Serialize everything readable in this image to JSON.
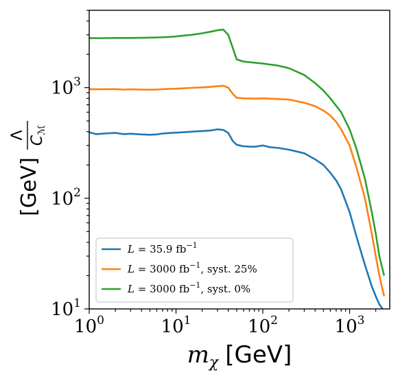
{
  "chart_data": {
    "type": "line",
    "xlabel_symbol": "m",
    "xlabel_sub": "χ",
    "xlabel_unit": "[GeV]",
    "ylabel_num": "Λ",
    "ylabel_den": "C",
    "ylabel_den_sub": "ℳ",
    "ylabel_unit": "[GeV]",
    "x_scale": "log",
    "y_scale": "log",
    "xlim": [
      1,
      2900
    ],
    "ylim": [
      10,
      5000
    ],
    "x_ticks": [
      {
        "value": 1,
        "base": "10",
        "exp": "0"
      },
      {
        "value": 10,
        "base": "10",
        "exp": "1"
      },
      {
        "value": 100,
        "base": "10",
        "exp": "2"
      },
      {
        "value": 1000,
        "base": "10",
        "exp": "3"
      }
    ],
    "y_ticks": [
      {
        "value": 10,
        "base": "10",
        "exp": "1"
      },
      {
        "value": 100,
        "base": "10",
        "exp": "2"
      },
      {
        "value": 1000,
        "base": "10",
        "exp": "3"
      }
    ],
    "grid": false,
    "legend_position": "lower-left",
    "series": [
      {
        "name": "L = 35.9 fb⁻¹, ",
        "label_parts": {
          "lhs": "L = 35.9 fb",
          "sup": "−1",
          "rest": ""
        },
        "color": "#1f77b4",
        "x": [
          1,
          1.2,
          1.5,
          2,
          2.5,
          3,
          4,
          5,
          6,
          7,
          8,
          10,
          12,
          15,
          20,
          25,
          30,
          35,
          40,
          45,
          50,
          60,
          70,
          80,
          100,
          120,
          150,
          200,
          300,
          400,
          500,
          600,
          700,
          800,
          1000,
          1200,
          1500,
          1800,
          2000,
          2200,
          2400
        ],
        "y": [
          395,
          380,
          385,
          390,
          380,
          383,
          378,
          375,
          378,
          385,
          388,
          392,
          395,
          400,
          405,
          410,
          420,
          415,
          390,
          330,
          305,
          295,
          293,
          292,
          300,
          290,
          285,
          275,
          255,
          225,
          200,
          170,
          145,
          120,
          75,
          45,
          25,
          16,
          13,
          11,
          10
        ]
      },
      {
        "name": "L = 3000 fb⁻¹, syst. 25%",
        "label_parts": {
          "lhs": "L = 3000 fb",
          "sup": "−1",
          "rest": ", syst. 25%"
        },
        "color": "#ff7f0e",
        "x": [
          1,
          1.2,
          1.5,
          2,
          2.5,
          3,
          4,
          5,
          6,
          7,
          8,
          10,
          12,
          15,
          20,
          25,
          30,
          35,
          40,
          45,
          50,
          60,
          70,
          80,
          100,
          120,
          150,
          200,
          300,
          400,
          500,
          600,
          700,
          800,
          1000,
          1200,
          1500,
          1800,
          2000,
          2200,
          2500
        ],
        "y": [
          970,
          965,
          968,
          970,
          960,
          965,
          960,
          958,
          962,
          968,
          972,
          978,
          985,
          995,
          1005,
          1015,
          1030,
          1040,
          1000,
          880,
          810,
          800,
          798,
          795,
          800,
          795,
          790,
          780,
          730,
          680,
          620,
          560,
          490,
          420,
          300,
          190,
          100,
          48,
          30,
          20,
          13
        ]
      },
      {
        "name": "L = 3000 fb⁻¹, syst. 0%",
        "label_parts": {
          "lhs": "L = 3000 fb",
          "sup": "−1",
          "rest": ", syst. 0%"
        },
        "color": "#2ca02c",
        "x": [
          1,
          1.5,
          2,
          3,
          4,
          5,
          6,
          8,
          10,
          12,
          15,
          20,
          25,
          30,
          35,
          40,
          45,
          50,
          60,
          80,
          100,
          150,
          200,
          300,
          400,
          500,
          600,
          800,
          1000,
          1200,
          1500,
          1800,
          2000,
          2200,
          2500
        ],
        "y": [
          2800,
          2805,
          2810,
          2810,
          2820,
          2830,
          2840,
          2870,
          2900,
          2950,
          3000,
          3100,
          3200,
          3300,
          3350,
          3000,
          2300,
          1800,
          1720,
          1680,
          1650,
          1580,
          1500,
          1300,
          1100,
          940,
          800,
          600,
          420,
          280,
          150,
          75,
          48,
          30,
          20
        ]
      }
    ]
  }
}
